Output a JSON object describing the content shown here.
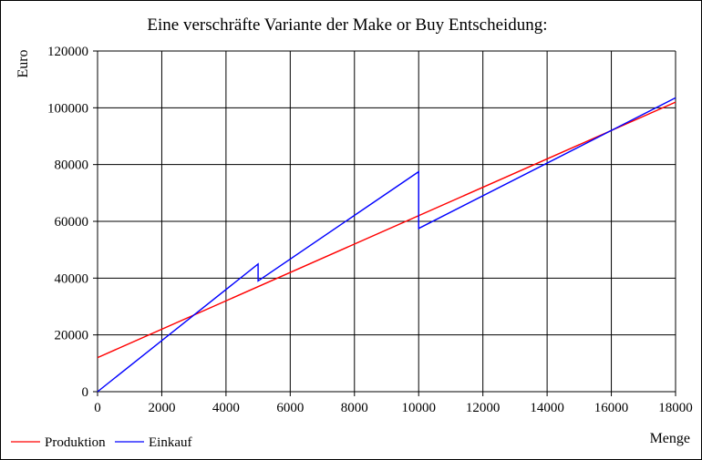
{
  "chart_data": {
    "type": "line",
    "title": "Eine verschräfte Variante der Make or Buy Entscheidung:",
    "xlabel": "Menge",
    "ylabel": "Euro",
    "xlim": [
      0,
      18000
    ],
    "ylim": [
      0,
      120000
    ],
    "x_ticks": [
      "0",
      "2000",
      "4000",
      "6000",
      "8000",
      "10000",
      "12000",
      "14000",
      "16000",
      "18000"
    ],
    "y_ticks": [
      "0",
      "20000",
      "40000",
      "60000",
      "80000",
      "100000",
      "120000"
    ],
    "grid": true,
    "legend_position": "bottom-left",
    "series": [
      {
        "name": "Produktion",
        "color": "#ff0000",
        "points": [
          [
            0,
            12000
          ],
          [
            18000,
            102000
          ]
        ]
      },
      {
        "name": "Einkauf",
        "color": "#0000ff",
        "points": [
          [
            0,
            0
          ],
          [
            5000,
            45000
          ],
          [
            5000,
            39000
          ],
          [
            10000,
            77500
          ],
          [
            10000,
            57500
          ],
          [
            18000,
            103500
          ]
        ]
      }
    ]
  }
}
